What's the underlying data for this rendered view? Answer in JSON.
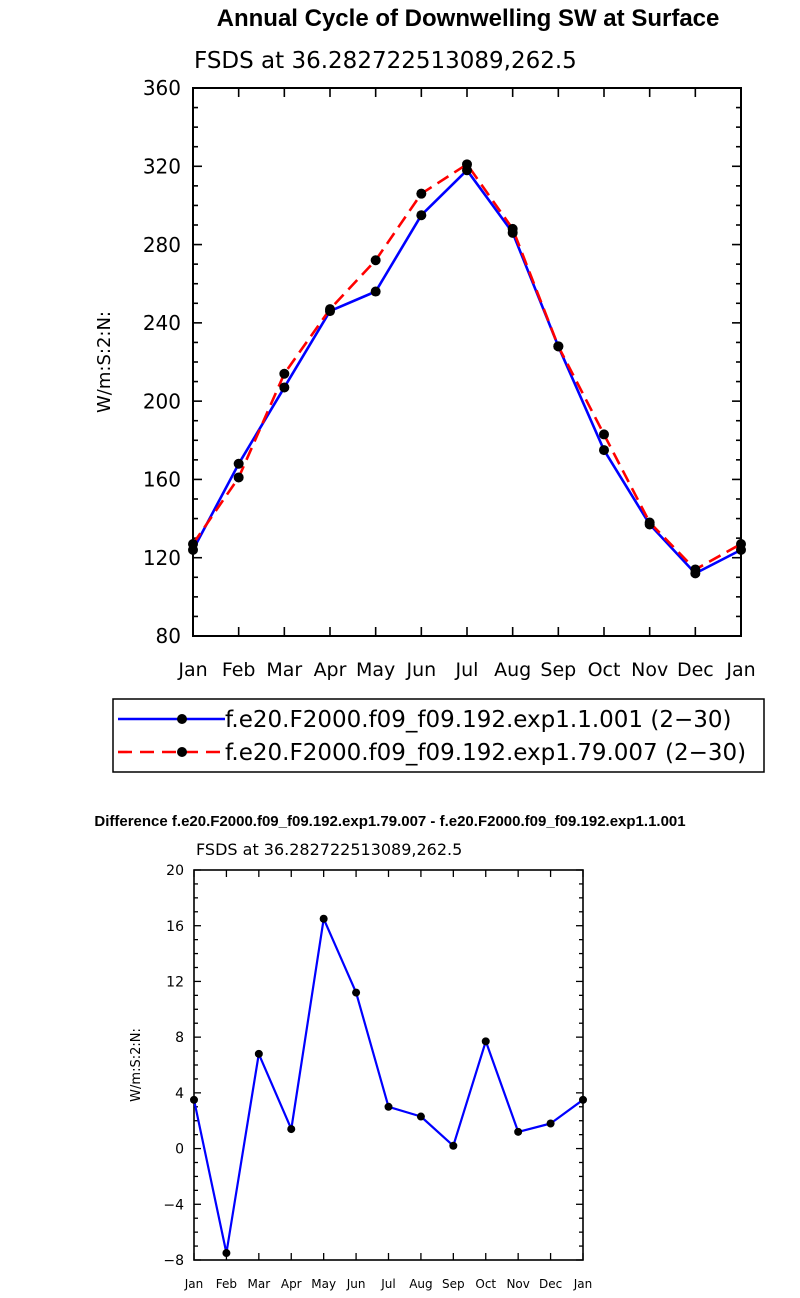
{
  "chart_data": [
    {
      "type": "line",
      "title": "Annual Cycle of Downwelling SW at Surface",
      "subtitle": "FSDS at 36.282722513089,262.5",
      "ylabel": "W/m:S:2:N:",
      "xlabel": "",
      "categories": [
        "Jan",
        "Feb",
        "Mar",
        "Apr",
        "May",
        "Jun",
        "Jul",
        "Aug",
        "Sep",
        "Oct",
        "Nov",
        "Dec",
        "Jan"
      ],
      "ylim": [
        80,
        360
      ],
      "yticks": [
        80,
        120,
        160,
        200,
        240,
        280,
        320,
        360
      ],
      "legend_position": "bottom",
      "series": [
        {
          "name": "f.e20.F2000.f09_f09.192.exp1.1.001 (2−30)",
          "color": "#0000ff",
          "dash": "solid",
          "values": [
            124,
            168,
            207,
            246,
            256,
            295,
            318,
            286,
            228,
            175,
            137,
            112,
            124
          ]
        },
        {
          "name": "f.e20.F2000.f09_f09.192.exp1.79.007 (2−30)",
          "color": "#ff0000",
          "dash": "dashed",
          "values": [
            127,
            161,
            214,
            247,
            272,
            306,
            321,
            288,
            228,
            183,
            138,
            114,
            127
          ]
        }
      ]
    },
    {
      "type": "line",
      "title": "Difference f.e20.F2000.f09_f09.192.exp1.79.007 - f.e20.F2000.f09_f09.192.exp1.1.001",
      "subtitle": "FSDS at 36.282722513089,262.5",
      "ylabel": "W/m:S:2:N:",
      "xlabel": "",
      "categories": [
        "Jan",
        "Feb",
        "Mar",
        "Apr",
        "May",
        "Jun",
        "Jul",
        "Aug",
        "Sep",
        "Oct",
        "Nov",
        "Dec",
        "Jan"
      ],
      "ylim": [
        -8,
        20
      ],
      "yticks": [
        -8,
        -4,
        0,
        4,
        8,
        12,
        16,
        20
      ],
      "series": [
        {
          "name": "Difference",
          "color": "#0000ff",
          "dash": "solid",
          "values": [
            3.5,
            -7.5,
            6.8,
            1.4,
            16.5,
            11.2,
            3.0,
            2.3,
            0.2,
            7.7,
            1.2,
            1.8,
            3.5
          ]
        }
      ]
    }
  ]
}
